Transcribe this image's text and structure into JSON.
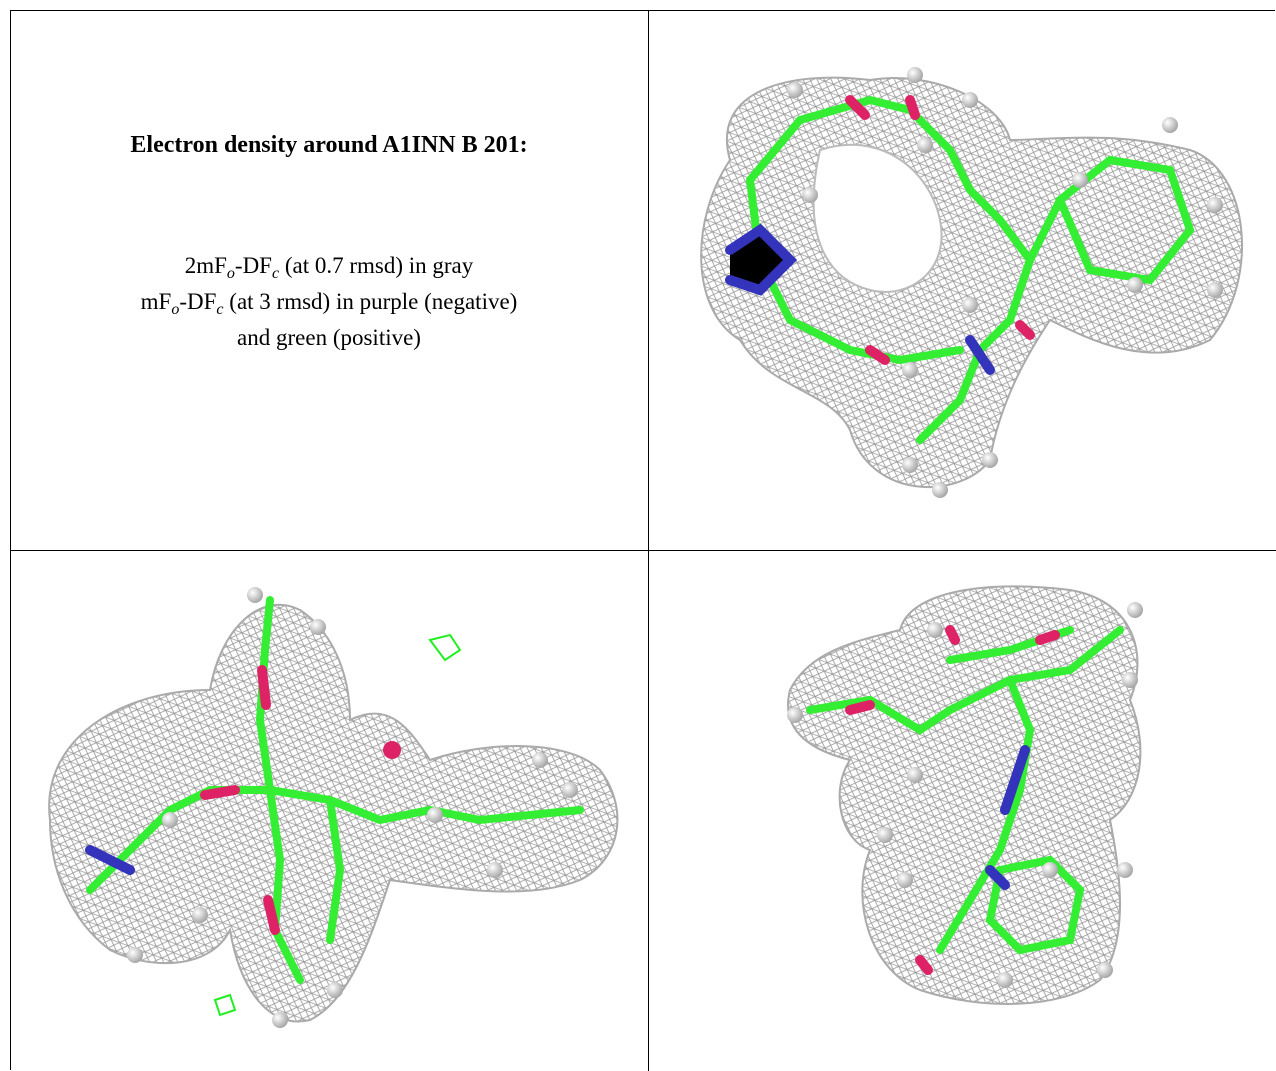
{
  "title": "Electron density around A1INN B 201:",
  "caption": [
    [
      "2mF",
      "o",
      "-DF",
      "c",
      " (at 0.7 rmsd) in gray"
    ],
    [
      "mF",
      "o",
      "-DF",
      "c",
      " (at 3 rmsd) in purple (negative)"
    ],
    [
      "and green (positive)"
    ]
  ]
}
